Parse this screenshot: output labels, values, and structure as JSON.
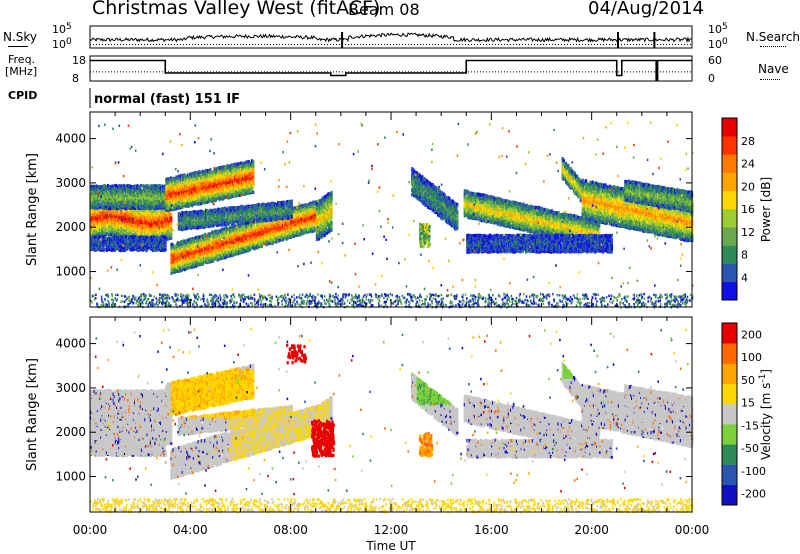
{
  "header": {
    "title": "Christmas Valley West (fitACF)",
    "beam": "Beam 08",
    "date": "04/Aug/2014"
  },
  "side_labels": {
    "nsky": "N.Sky",
    "nsearch": "N.Search",
    "freq": "Freq.",
    "freq_unit": "[MHz]",
    "nave": "Nave",
    "cpid": "CPID",
    "cpid_text": "normal (fast) 151 IF"
  },
  "chart_data": [
    {
      "type": "line",
      "name": "noise",
      "yaxis_left": {
        "ticks": [
          "10^5",
          "10^0"
        ]
      },
      "yaxis_right": {
        "ticks": [
          "10^5",
          "10^0"
        ]
      },
      "series": [
        {
          "name": "N.Sky",
          "style": "solid"
        },
        {
          "name": "N.Search",
          "style": "dotted"
        }
      ]
    },
    {
      "type": "line",
      "name": "frequency",
      "yaxis_left": {
        "ticks": [
          "18",
          "8"
        ],
        "range": [
          8,
          18
        ]
      },
      "yaxis_right": {
        "ticks": [
          "60",
          "0"
        ],
        "range": [
          0,
          60
        ]
      },
      "series": [
        {
          "name": "Freq.",
          "style": "solid",
          "segments": [
            [
              0,
              16.2
            ],
            [
              3,
              11.2
            ],
            [
              9.6,
              10.2
            ],
            [
              10.2,
              11.2
            ],
            [
              15,
              16.2
            ],
            [
              21,
              10.2
            ],
            [
              21.2,
              16.2
            ],
            [
              24,
              16.2
            ]
          ]
        },
        {
          "name": "Nave",
          "style": "dotted",
          "value": 22
        }
      ]
    },
    {
      "type": "heatmap",
      "name": "power",
      "ylabel": "Slant Range [km]",
      "yticks": [
        1000,
        2000,
        3000,
        4000
      ],
      "ylim": [
        200,
        4600
      ],
      "xlim": [
        0,
        24
      ],
      "colorbar": {
        "label": "Power [dB]",
        "ticks": [
          "4",
          "8",
          "12",
          "16",
          "20",
          "24",
          "28"
        ],
        "colors": [
          "#1010e6",
          "#2b55b0",
          "#2e8b57",
          "#6aa84f",
          "#9acd32",
          "#ffd700",
          "#ffa500",
          "#ff7a00",
          "#ff3300",
          "#e60000"
        ]
      }
    },
    {
      "type": "heatmap",
      "name": "velocity",
      "ylabel": "Slant Range [km]",
      "yticks": [
        1000,
        2000,
        3000,
        4000
      ],
      "ylim": [
        200,
        4600
      ],
      "xlim": [
        0,
        24
      ],
      "xlabel": "Time UT",
      "xticks": [
        "00:00",
        "04:00",
        "08:00",
        "12:00",
        "16:00",
        "20:00",
        "00:00"
      ],
      "colorbar": {
        "label": "Velocity [m s",
        "label_sup": "-1",
        "label_end": "]",
        "ticks": [
          "200",
          "100",
          "50",
          "15",
          "-15",
          "-50",
          "-100",
          "-200"
        ],
        "colors": [
          "#1010c0",
          "#2b55b0",
          "#2e8b57",
          "#7cd13c",
          "#c8c8c8",
          "#ffd700",
          "#ffa500",
          "#ff6a00",
          "#e60000"
        ]
      }
    }
  ]
}
